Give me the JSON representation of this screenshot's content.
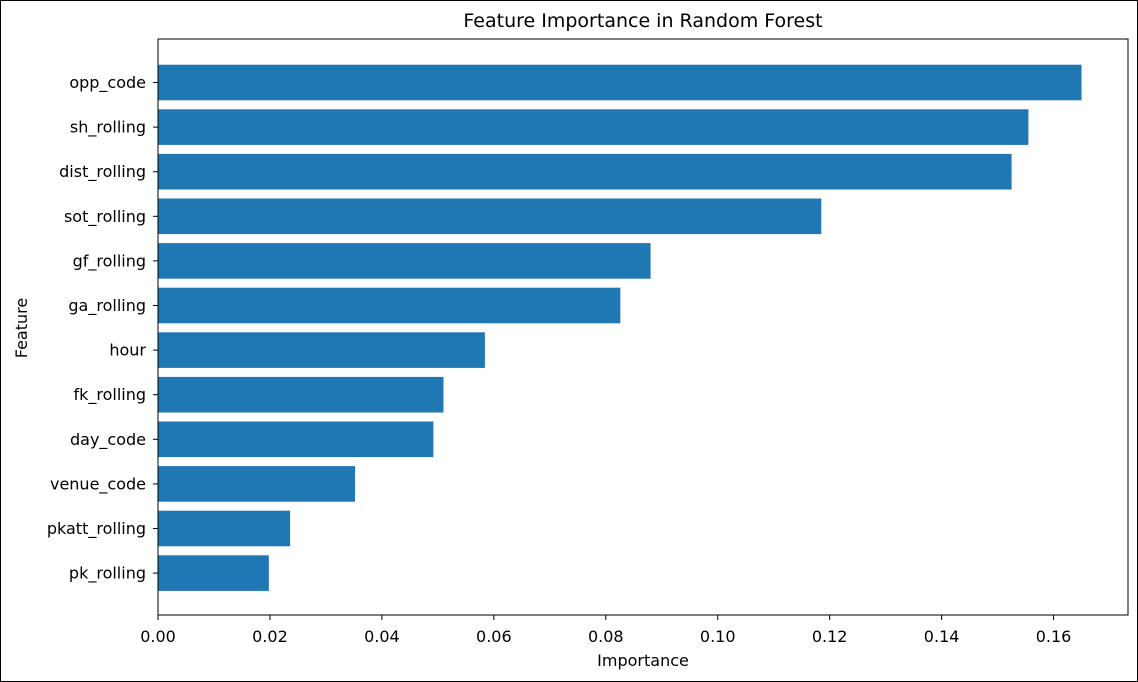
{
  "chart_data": {
    "type": "bar",
    "orientation": "horizontal",
    "title": "Feature Importance in Random Forest",
    "xlabel": "Importance",
    "ylabel": "Feature",
    "categories": [
      "opp_code",
      "sh_rolling",
      "dist_rolling",
      "sot_rolling",
      "gf_rolling",
      "ga_rolling",
      "hour",
      "fk_rolling",
      "day_code",
      "venue_code",
      "pkatt_rolling",
      "pk_rolling"
    ],
    "values": [
      0.165,
      0.1555,
      0.1525,
      0.1185,
      0.088,
      0.0826,
      0.0584,
      0.051,
      0.0492,
      0.0352,
      0.0236,
      0.0198
    ],
    "xlim": [
      0,
      0.1733
    ],
    "xticks": [
      0.0,
      0.02,
      0.04,
      0.06,
      0.08,
      0.1,
      0.12,
      0.14,
      0.16
    ],
    "xtick_labels": [
      "0.00",
      "0.02",
      "0.04",
      "0.06",
      "0.08",
      "0.10",
      "0.12",
      "0.14",
      "0.16"
    ],
    "bar_color": "#1f77b4",
    "grid": false,
    "legend": "none"
  }
}
